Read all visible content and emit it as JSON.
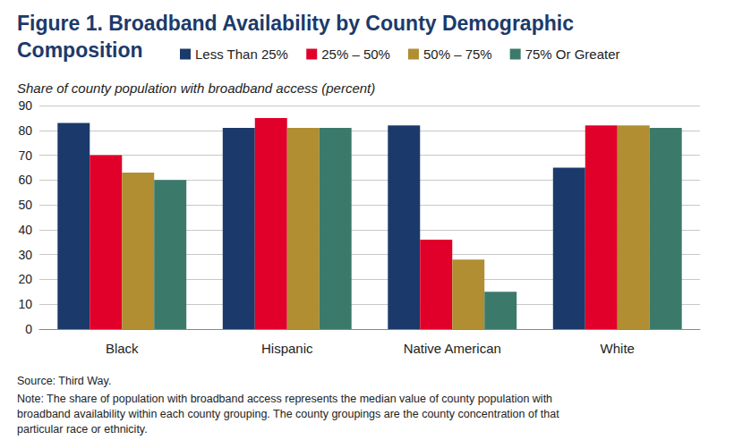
{
  "chart_data": {
    "type": "bar",
    "title": "Figure 1. Broadband Availability by County Demographic Composition",
    "subtitle": "Share of county population with broadband access (percent)",
    "annotations": [
      "Source: Third Way.",
      "Note: The share of population with broadband access represents the median value of county population with broadband availability within each county grouping. The county groupings are the county concentration of that particular race or ethnicity."
    ],
    "categories": [
      "Black",
      "Hispanic",
      "Native American",
      "White"
    ],
    "series": [
      {
        "name": "Less Than 25%",
        "color": "#1b3a6b",
        "values": [
          83,
          81,
          82,
          65
        ]
      },
      {
        "name": "25% – 50%",
        "color": "#e1002a",
        "values": [
          70,
          85,
          36,
          82
        ]
      },
      {
        "name": "50% – 75%",
        "color": "#b08e31",
        "values": [
          63,
          81,
          28,
          82
        ]
      },
      {
        "name": "75% Or Greater",
        "color": "#3b7a6b",
        "values": [
          60,
          81,
          15,
          81
        ]
      }
    ],
    "ylim": [
      0,
      90
    ],
    "yticks": [
      0,
      10,
      20,
      30,
      40,
      50,
      60,
      70,
      80,
      90
    ],
    "grid": true,
    "legend": "top"
  }
}
